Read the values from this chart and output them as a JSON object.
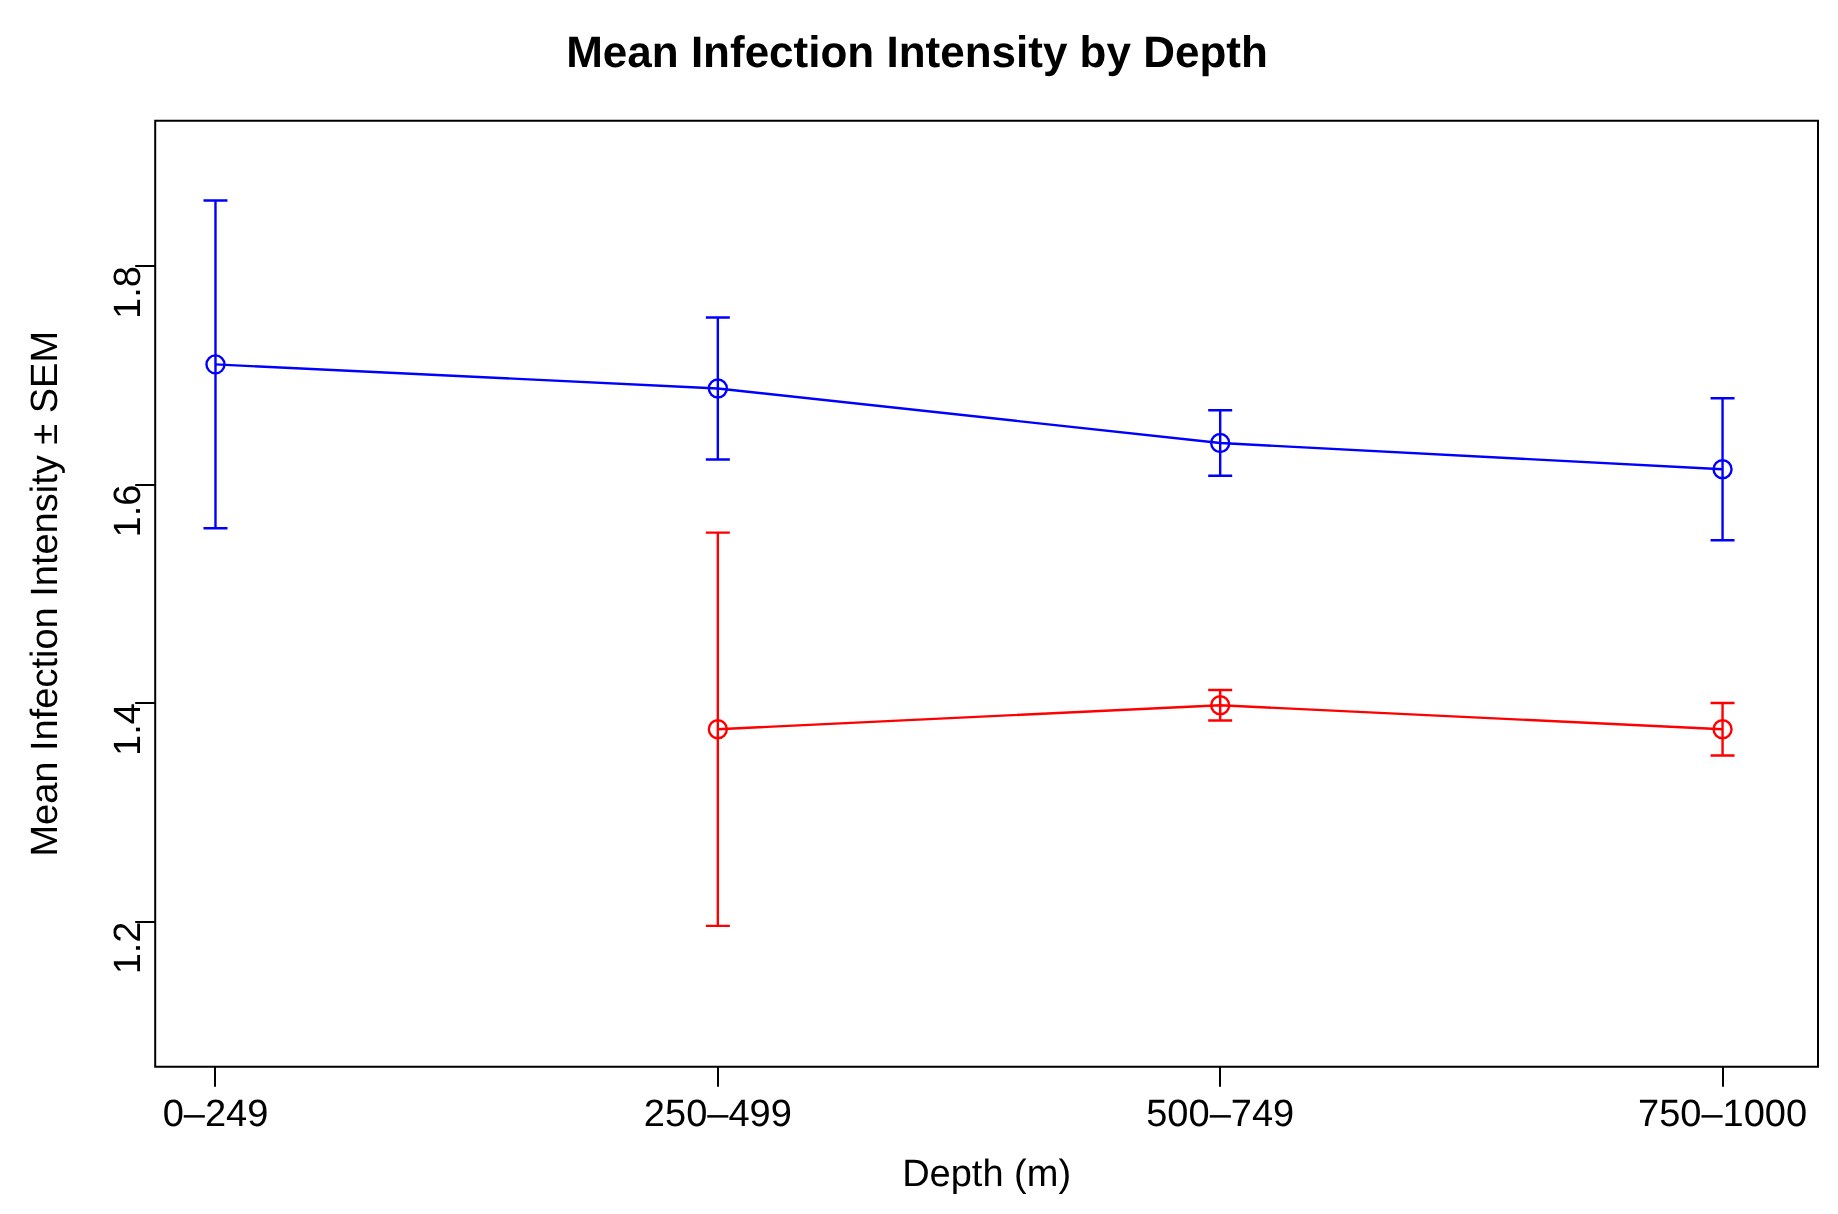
{
  "chart_data": {
    "type": "line",
    "title": "Mean Infection Intensity by Depth",
    "xlabel": "Depth (m)",
    "ylabel": "Mean Infection Intensity ± SEM",
    "categories": [
      "0–249",
      "250–499",
      "500–749",
      "750–1000"
    ],
    "series": [
      {
        "color": "#0000ff",
        "values": [
          1.71,
          1.688,
          1.638,
          1.614
        ],
        "errors": [
          0.15,
          0.065,
          0.03,
          0.065
        ]
      },
      {
        "color": "#ff0000",
        "values": [
          null,
          1.376,
          1.398,
          1.376
        ],
        "errors": [
          null,
          0.18,
          0.014,
          0.024
        ]
      }
    ],
    "ylim": [
      1.067,
      1.933
    ],
    "yticks": [
      1.2,
      1.4,
      1.6,
      1.8
    ],
    "grid": false,
    "legend": false,
    "marker": "circle",
    "line_style": "solid"
  }
}
